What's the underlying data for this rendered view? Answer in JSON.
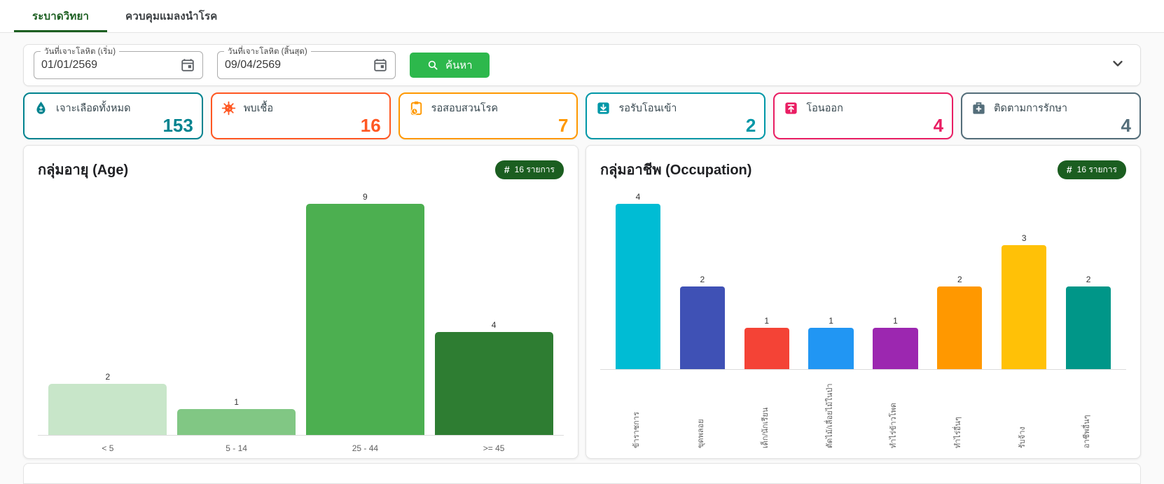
{
  "tabs": [
    {
      "label": "ระบาดวิทยา",
      "active": true
    },
    {
      "label": "ควบคุมแมลงนำโรค",
      "active": false
    }
  ],
  "filter": {
    "start_date": {
      "label": "วันที่เจาะโลหิต (เริ่ม)",
      "value": "01/01/2569"
    },
    "end_date": {
      "label": "วันที่เจาะโลหิต (สิ้นสุด)",
      "value": "09/04/2569"
    },
    "search_label": "ค้นหา"
  },
  "colors": {
    "active_tab": "#1b5e20",
    "search_button": "#2db84c",
    "badge": "#1b5e20"
  },
  "stat_cards": [
    {
      "icon": "blood-drop-icon",
      "label": "เจาะเลือดทั้งหมด",
      "value": "153",
      "color": "#00838f"
    },
    {
      "icon": "virus-icon",
      "label": "พบเชื้อ",
      "value": "16",
      "color": "#ff5722"
    },
    {
      "icon": "clipboard-clock-icon",
      "label": "รอสอบสวนโรค",
      "value": "7",
      "color": "#ff9800"
    },
    {
      "icon": "transfer-in-icon",
      "label": "รอรับโอนเข้า",
      "value": "2",
      "color": "#0097a7"
    },
    {
      "icon": "transfer-out-icon",
      "label": "โอนออก",
      "value": "4",
      "color": "#e91e63"
    },
    {
      "icon": "medical-bag-icon",
      "label": "ติดตามการรักษา",
      "value": "4",
      "color": "#546e7a"
    }
  ],
  "chart_data": [
    {
      "type": "bar",
      "title": "กลุ่มอายุ (Age)",
      "badge": "16 รายการ",
      "categories": [
        "< 5",
        "5 - 14",
        "25 - 44",
        ">= 45"
      ],
      "values": [
        2,
        1,
        9,
        4
      ],
      "bar_colors": [
        "#c8e6c9",
        "#81c784",
        "#4caf50",
        "#2e7d32"
      ],
      "ylim": [
        0,
        9
      ],
      "label_rotation": 0,
      "grid": false,
      "legend": "none"
    },
    {
      "type": "bar",
      "title": "กลุ่มอาชีพ (Occupation)",
      "badge": "16 รายการ",
      "categories": [
        "ข้าราชการ",
        "ขุดพลอย",
        "เด็ก/นักเรียน",
        "ตัดไม้/เลื่อยไม้ในป่า",
        "ทำไร่ข้าวโพด",
        "ทำไร่อื่นๆ",
        "รับจ้าง",
        "อาชีพอื่นๆ"
      ],
      "values": [
        4,
        2,
        1,
        1,
        1,
        2,
        3,
        2
      ],
      "bar_colors": [
        "#00bcd4",
        "#3f51b5",
        "#f44336",
        "#2196f3",
        "#9c27b0",
        "#ff9800",
        "#ffc107",
        "#009688"
      ],
      "ylim": [
        0,
        4
      ],
      "label_rotation": 90,
      "grid": false,
      "legend": "none"
    }
  ]
}
